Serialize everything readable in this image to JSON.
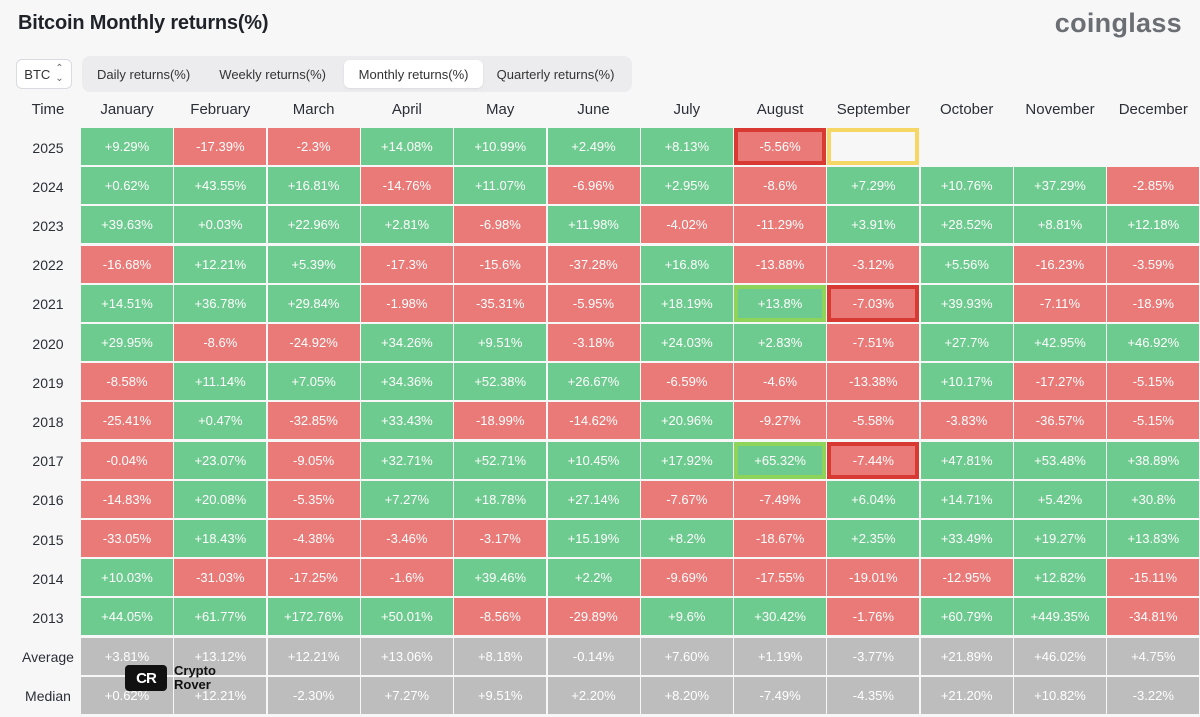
{
  "title": "Bitcoin Monthly returns(%)",
  "brand": "coinglass",
  "coin_select": {
    "value": "BTC",
    "icon": "chevron-updown-icon"
  },
  "tabs": [
    {
      "label": "Daily returns(%)",
      "active": false
    },
    {
      "label": "Weekly returns(%)",
      "active": false
    },
    {
      "label": "Monthly returns(%)",
      "active": true
    },
    {
      "label": "Quarterly returns(%)",
      "active": false
    }
  ],
  "table": {
    "time_header": "Time",
    "months": [
      "January",
      "February",
      "March",
      "April",
      "May",
      "June",
      "July",
      "August",
      "September",
      "October",
      "November",
      "December"
    ],
    "rows": [
      {
        "year": "2025",
        "values": [
          "+9.29%",
          "-17.39%",
          "-2.3%",
          "+14.08%",
          "+10.99%",
          "+2.49%",
          "+8.13%",
          "-5.56%",
          "",
          "",
          "",
          ""
        ]
      },
      {
        "year": "2024",
        "values": [
          "+0.62%",
          "+43.55%",
          "+16.81%",
          "-14.76%",
          "+11.07%",
          "-6.96%",
          "+2.95%",
          "-8.6%",
          "+7.29%",
          "+10.76%",
          "+37.29%",
          "-2.85%"
        ]
      },
      {
        "year": "2023",
        "values": [
          "+39.63%",
          "+0.03%",
          "+22.96%",
          "+2.81%",
          "-6.98%",
          "+11.98%",
          "-4.02%",
          "-11.29%",
          "+3.91%",
          "+28.52%",
          "+8.81%",
          "+12.18%"
        ]
      },
      {
        "year": "2022",
        "values": [
          "-16.68%",
          "+12.21%",
          "+5.39%",
          "-17.3%",
          "-15.6%",
          "-37.28%",
          "+16.8%",
          "-13.88%",
          "-3.12%",
          "+5.56%",
          "-16.23%",
          "-3.59%"
        ]
      },
      {
        "year": "2021",
        "values": [
          "+14.51%",
          "+36.78%",
          "+29.84%",
          "-1.98%",
          "-35.31%",
          "-5.95%",
          "+18.19%",
          "+13.8%",
          "-7.03%",
          "+39.93%",
          "-7.11%",
          "-18.9%"
        ]
      },
      {
        "year": "2020",
        "values": [
          "+29.95%",
          "-8.6%",
          "-24.92%",
          "+34.26%",
          "+9.51%",
          "-3.18%",
          "+24.03%",
          "+2.83%",
          "-7.51%",
          "+27.7%",
          "+42.95%",
          "+46.92%"
        ]
      },
      {
        "year": "2019",
        "values": [
          "-8.58%",
          "+11.14%",
          "+7.05%",
          "+34.36%",
          "+52.38%",
          "+26.67%",
          "-6.59%",
          "-4.6%",
          "-13.38%",
          "+10.17%",
          "-17.27%",
          "-5.15%"
        ]
      },
      {
        "year": "2018",
        "values": [
          "-25.41%",
          "+0.47%",
          "-32.85%",
          "+33.43%",
          "-18.99%",
          "-14.62%",
          "+20.96%",
          "-9.27%",
          "-5.58%",
          "-3.83%",
          "-36.57%",
          "-5.15%"
        ]
      },
      {
        "year": "2017",
        "values": [
          "-0.04%",
          "+23.07%",
          "-9.05%",
          "+32.71%",
          "+52.71%",
          "+10.45%",
          "+17.92%",
          "+65.32%",
          "-7.44%",
          "+47.81%",
          "+53.48%",
          "+38.89%"
        ]
      },
      {
        "year": "2016",
        "values": [
          "-14.83%",
          "+20.08%",
          "-5.35%",
          "+7.27%",
          "+18.78%",
          "+27.14%",
          "-7.67%",
          "-7.49%",
          "+6.04%",
          "+14.71%",
          "+5.42%",
          "+30.8%"
        ]
      },
      {
        "year": "2015",
        "values": [
          "-33.05%",
          "+18.43%",
          "-4.38%",
          "-3.46%",
          "-3.17%",
          "+15.19%",
          "+8.2%",
          "-18.67%",
          "+2.35%",
          "+33.49%",
          "+19.27%",
          "+13.83%"
        ]
      },
      {
        "year": "2014",
        "values": [
          "+10.03%",
          "-31.03%",
          "-17.25%",
          "-1.6%",
          "+39.46%",
          "+2.2%",
          "-9.69%",
          "-17.55%",
          "-19.01%",
          "-12.95%",
          "+12.82%",
          "-15.11%"
        ]
      },
      {
        "year": "2013",
        "values": [
          "+44.05%",
          "+61.77%",
          "+172.76%",
          "+50.01%",
          "-8.56%",
          "-29.89%",
          "+9.6%",
          "+30.42%",
          "-1.76%",
          "+60.79%",
          "+449.35%",
          "-34.81%"
        ]
      }
    ],
    "summary": [
      {
        "label": "Average",
        "values": [
          "+3.81%",
          "+13.12%",
          "+12.21%",
          "+13.06%",
          "+8.18%",
          "-0.14%",
          "+7.60%",
          "+1.19%",
          "-3.77%",
          "+21.89%",
          "+46.02%",
          "+4.75%"
        ]
      },
      {
        "label": "Median",
        "values": [
          "+0.62%",
          "+12.21%",
          "-2.30%",
          "+7.27%",
          "+9.51%",
          "+2.20%",
          "+8.20%",
          "-7.49%",
          "-4.35%",
          "+21.20%",
          "+10.82%",
          "-3.22%"
        ]
      }
    ],
    "highlights": [
      {
        "year": "2025",
        "month": "August",
        "color": "#d83a33"
      },
      {
        "year": "2025",
        "month": "September",
        "color": "#f6d766"
      },
      {
        "year": "2021",
        "month": "August",
        "color": "#8fd45a"
      },
      {
        "year": "2021",
        "month": "September",
        "color": "#d83a33"
      },
      {
        "year": "2017",
        "month": "August",
        "color": "#8fd45a"
      },
      {
        "year": "2017",
        "month": "September",
        "color": "#d83a33"
      }
    ],
    "colors": {
      "positive": "#6ecb8f",
      "negative": "#ea7a78",
      "summary": "#bdbdbd"
    }
  },
  "watermark": {
    "logo": "CR",
    "line1": "Crypto",
    "line2": "Rover"
  }
}
